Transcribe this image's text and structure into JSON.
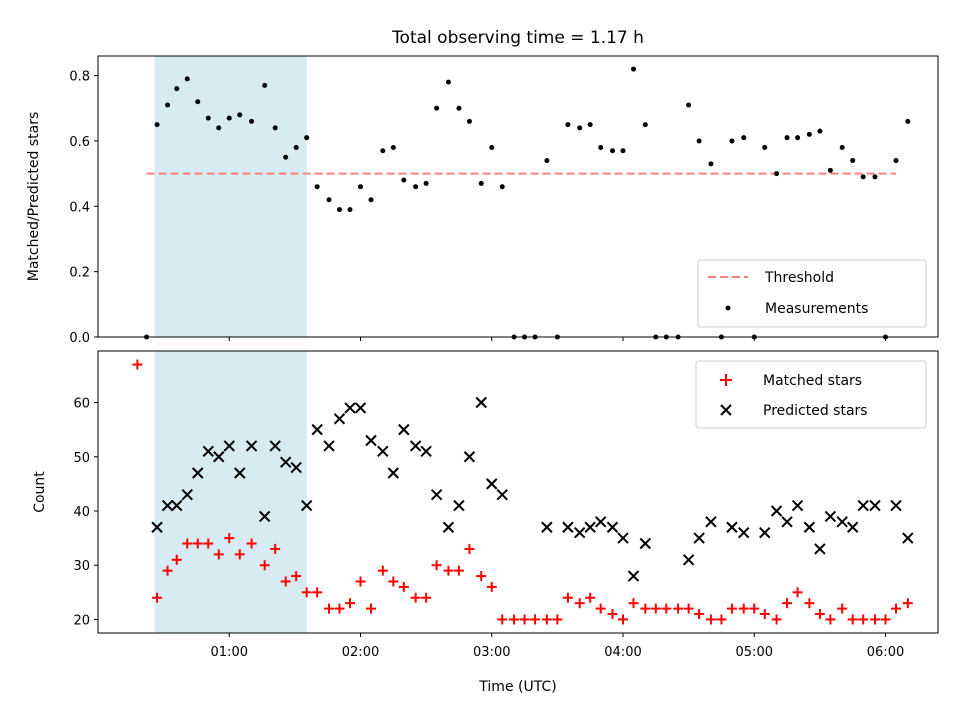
{
  "chart_data": [
    {
      "type": "scatter",
      "title": "Total observing time = 1.17 h",
      "ylabel": "Matched/Predicted stars",
      "xlim_hours": [
        0.0,
        6.4
      ],
      "ylim": [
        0.0,
        0.86
      ],
      "yticks": [
        0.0,
        0.2,
        0.4,
        0.6,
        0.8
      ],
      "ytick_labels": [
        "0.0",
        "0.2",
        "0.4",
        "0.6",
        "0.8"
      ],
      "grid": false,
      "legend_position": "lower-right",
      "shaded_region": {
        "x_start": 0.43,
        "x_end": 1.59,
        "color": "#add8e6"
      },
      "threshold": {
        "name": "Threshold",
        "y": 0.5,
        "x_start": 0.37,
        "x_end": 6.08,
        "color": "#ff7f7f"
      },
      "series": [
        {
          "name": "Measurements",
          "color": "#000000",
          "x": [
            0.37,
            0.45,
            0.53,
            0.6,
            0.68,
            0.76,
            0.84,
            0.92,
            1.0,
            1.08,
            1.17,
            1.27,
            1.35,
            1.43,
            1.51,
            1.59,
            1.67,
            1.76,
            1.84,
            1.92,
            2.0,
            2.08,
            2.17,
            2.25,
            2.33,
            2.42,
            2.5,
            2.58,
            2.67,
            2.75,
            2.83,
            2.92,
            3.0,
            3.08,
            3.17,
            3.25,
            3.33,
            3.42,
            3.5,
            3.58,
            3.67,
            3.75,
            3.83,
            3.92,
            4.0,
            4.08,
            4.17,
            4.25,
            4.33,
            4.42,
            4.5,
            4.58,
            4.67,
            4.75,
            4.83,
            4.92,
            5.0,
            5.08,
            5.17,
            5.25,
            5.33,
            5.42,
            5.5,
            5.58,
            5.67,
            5.75,
            5.83,
            5.92,
            6.0,
            6.08,
            6.17
          ],
          "y": [
            0.0,
            0.65,
            0.71,
            0.76,
            0.79,
            0.72,
            0.67,
            0.64,
            0.67,
            0.68,
            0.66,
            0.77,
            0.64,
            0.55,
            0.58,
            0.61,
            0.46,
            0.42,
            0.39,
            0.39,
            0.46,
            0.42,
            0.57,
            0.58,
            0.48,
            0.46,
            0.47,
            0.7,
            0.78,
            0.7,
            0.66,
            0.47,
            0.58,
            0.46,
            0.0,
            0.0,
            0.0,
            0.54,
            0.0,
            0.65,
            0.64,
            0.65,
            0.58,
            0.57,
            0.57,
            0.82,
            0.65,
            0.0,
            0.0,
            0.0,
            0.71,
            0.6,
            0.53,
            0.0,
            0.6,
            0.61,
            0.0,
            0.58,
            0.5,
            0.61,
            0.61,
            0.62,
            0.63,
            0.51,
            0.58,
            0.54,
            0.49,
            0.49,
            0.0,
            0.54,
            0.66
          ]
        }
      ]
    },
    {
      "type": "scatter",
      "xlabel": "Time (UTC)",
      "ylabel": "Count",
      "xlim_hours": [
        0.0,
        6.4
      ],
      "ylim": [
        17.5,
        69.5
      ],
      "xticks_hours": [
        1,
        2,
        3,
        4,
        5,
        6
      ],
      "xtick_labels": [
        "01:00",
        "02:00",
        "03:00",
        "04:00",
        "05:00",
        "06:00"
      ],
      "yticks": [
        20,
        30,
        40,
        50,
        60
      ],
      "ytick_labels": [
        "20",
        "30",
        "40",
        "50",
        "60"
      ],
      "grid": false,
      "legend_position": "upper-right",
      "shaded_region": {
        "x_start": 0.43,
        "x_end": 1.59,
        "color": "#add8e6"
      },
      "series": [
        {
          "name": "Matched stars",
          "marker": "plus",
          "color": "#ff0000",
          "x": [
            0.3,
            0.45,
            0.53,
            0.6,
            0.68,
            0.76,
            0.84,
            0.92,
            1.0,
            1.08,
            1.17,
            1.27,
            1.35,
            1.43,
            1.51,
            1.59,
            1.67,
            1.76,
            1.84,
            1.92,
            2.0,
            2.08,
            2.17,
            2.25,
            2.33,
            2.42,
            2.5,
            2.58,
            2.67,
            2.75,
            2.83,
            2.92,
            3.0,
            3.08,
            3.17,
            3.25,
            3.33,
            3.42,
            3.5,
            3.58,
            3.67,
            3.75,
            3.83,
            3.92,
            4.0,
            4.08,
            4.17,
            4.25,
            4.33,
            4.42,
            4.5,
            4.58,
            4.67,
            4.75,
            4.83,
            4.92,
            5.0,
            5.08,
            5.17,
            5.25,
            5.33,
            5.42,
            5.5,
            5.58,
            5.67,
            5.75,
            5.83,
            5.92,
            6.0,
            6.08,
            6.17
          ],
          "y": [
            67,
            24,
            29,
            31,
            34,
            34,
            34,
            32,
            35,
            32,
            34,
            30,
            33,
            27,
            28,
            25,
            25,
            22,
            22,
            23,
            27,
            22,
            29,
            27,
            26,
            24,
            24,
            30,
            29,
            29,
            33,
            28,
            26,
            20,
            20,
            20,
            20,
            20,
            20,
            24,
            23,
            24,
            22,
            21,
            20,
            23,
            22,
            22,
            22,
            22,
            22,
            21,
            20,
            20,
            22,
            22,
            22,
            21,
            20,
            23,
            25,
            23,
            21,
            20,
            22,
            20,
            20,
            20,
            20,
            22,
            23
          ]
        },
        {
          "name": "Predicted stars",
          "marker": "x",
          "color": "#000000",
          "x": [
            0.45,
            0.53,
            0.6,
            0.68,
            0.76,
            0.84,
            0.92,
            1.0,
            1.08,
            1.17,
            1.27,
            1.35,
            1.43,
            1.51,
            1.59,
            1.67,
            1.76,
            1.84,
            1.92,
            2.0,
            2.08,
            2.17,
            2.25,
            2.33,
            2.42,
            2.5,
            2.58,
            2.67,
            2.75,
            2.83,
            2.92,
            3.0,
            3.08,
            3.42,
            3.58,
            3.67,
            3.75,
            3.83,
            3.92,
            4.0,
            4.08,
            4.17,
            4.5,
            4.58,
            4.67,
            4.83,
            4.92,
            5.08,
            5.17,
            5.25,
            5.33,
            5.42,
            5.5,
            5.58,
            5.67,
            5.75,
            5.83,
            5.92,
            6.08,
            6.17
          ],
          "y": [
            37,
            41,
            41,
            43,
            47,
            51,
            50,
            52,
            47,
            52,
            39,
            52,
            49,
            48,
            41,
            55,
            52,
            57,
            59,
            59,
            53,
            51,
            47,
            55,
            52,
            51,
            43,
            37,
            41,
            50,
            60,
            45,
            43,
            37,
            37,
            36,
            37,
            38,
            37,
            35,
            28,
            34,
            31,
            35,
            38,
            37,
            36,
            36,
            40,
            38,
            41,
            37,
            33,
            39,
            38,
            37,
            41,
            41,
            41,
            35
          ]
        }
      ]
    }
  ]
}
